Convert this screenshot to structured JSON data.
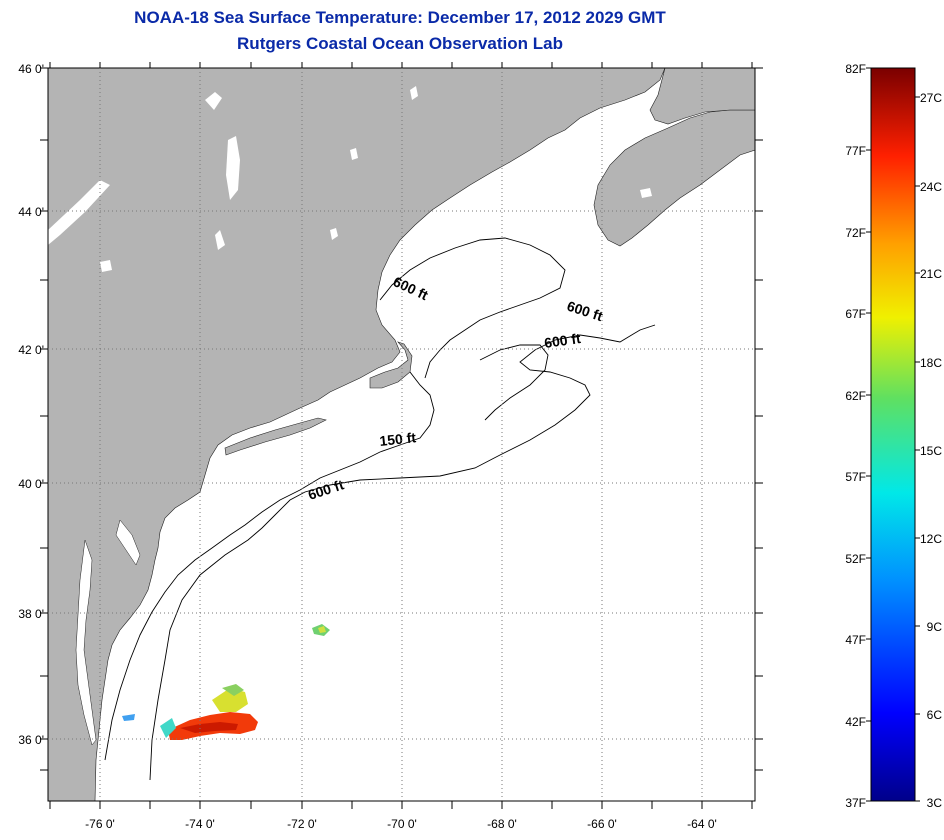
{
  "title": "NOAA-18 Sea Surface Temperature:  December 17, 2012 2029 GMT",
  "subtitle": "Rutgers Coastal Ocean Observation Lab",
  "map": {
    "lat_labels": [
      "46 0'",
      "44 0'",
      "42 0'",
      "40 0'",
      "38 0'",
      "36 0'"
    ],
    "lon_labels": [
      "-76 0'",
      "-74 0'",
      "-72 0'",
      "-70 0'",
      "-68 0'",
      "-66 0'",
      "-64 0'"
    ],
    "contour_labels": [
      "600 ft",
      "600 ft",
      "600 ft",
      "150 ft",
      "600 ft"
    ],
    "land_color": "#b4b4b4",
    "ocean_color": "#ffffff"
  },
  "colorbar": {
    "fahrenheit_labels": [
      "82F",
      "77F",
      "72F",
      "67F",
      "62F",
      "57F",
      "52F",
      "47F",
      "42F",
      "37F"
    ],
    "celsius_labels": [
      "27C",
      "24C",
      "21C",
      "18C",
      "15C",
      "12C",
      "9C",
      "6C",
      "3C"
    ]
  }
}
